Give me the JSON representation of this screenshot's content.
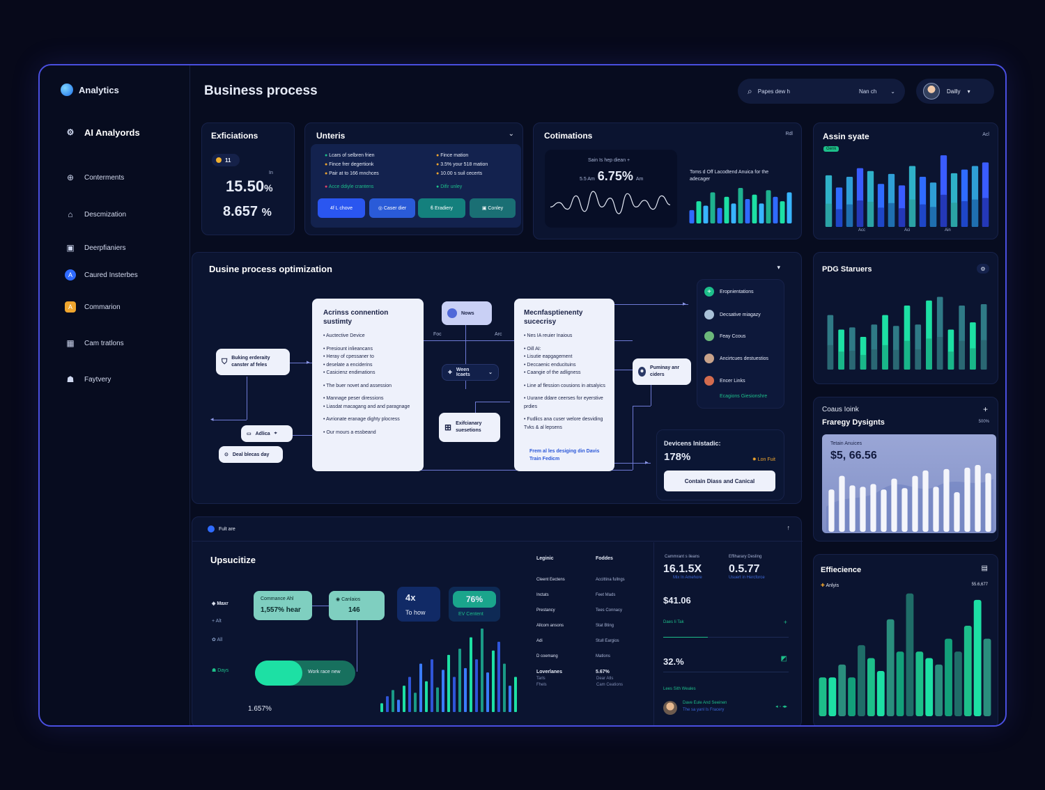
{
  "brand": {
    "name": "Analytics"
  },
  "nav": [
    {
      "label": "AI Analyords",
      "icon": "ai-icon"
    },
    {
      "label": "Conterments",
      "icon": "globe-icon"
    },
    {
      "label": "Descmization",
      "icon": "home-icon"
    },
    {
      "label": "Deerpfianiers",
      "icon": "document-icon"
    },
    {
      "label": "Caured Insterbes",
      "icon": "badge-icon"
    },
    {
      "label": "Commarion",
      "icon": "badge-icon"
    },
    {
      "label": "Cam tratlons",
      "icon": "grid-icon"
    },
    {
      "label": "Faytvery",
      "icon": "user-icon"
    }
  ],
  "header": {
    "title": "Business process",
    "search_text": "Papes dew h",
    "search_select": "Nan ch",
    "user_label": "Dailly"
  },
  "efficiations": {
    "title": "Exficiations",
    "badge": "11",
    "tiny": "In",
    "value1": "15.50",
    "value1_unit": "%",
    "value2": "8.657",
    "value2_unit": "%"
  },
  "unteris": {
    "title": "Unteris",
    "items_left": [
      "Lcars of selbren frien",
      "Fince frer degertionk",
      "Pair at to 166 mnchces",
      "Acce ddiyle crantens"
    ],
    "items_right": [
      "Fince mation",
      "3.5% your 518 mation",
      "10.00 s suil cecerts",
      "Difir unley"
    ],
    "buttons": [
      "4f L chove",
      "Caser dier",
      "Eradiery",
      "Conley"
    ]
  },
  "cotimations": {
    "title": "Cotimations",
    "corner": "Rdl",
    "sub": "Sain Is hep diean +",
    "val_prefix": "5.5 Am",
    "value": "6.75%",
    "val_suffix": "Am",
    "caption": "Toms d Off Lacodtend Anuica for the adecager"
  },
  "assin": {
    "title": "Assin syate",
    "corner": "Acl",
    "tag": "Genk",
    "ticks": [
      "Acc",
      "Aci",
      "Ain"
    ]
  },
  "optimization": {
    "title": "Dusine process optimization",
    "node1": {
      "title": "Acrinss connention sustimty",
      "items": [
        "Auctective Device",
        "Presiount inlieancans",
        "Heray of cpessaner to",
        "deselate a enciderins",
        "Casicienz endimations",
        "The buer novet and assession",
        "Mannage peser diressions",
        "Liasdat macagang and and paragnage",
        "Avrionate eranage dighty plocress",
        "Our mours a essbeand"
      ]
    },
    "node2": {
      "title": "Mecnfasptienenty sucecrisy",
      "items": [
        "Nes IA reuier Inaious",
        "Oill AI:",
        "Lisutie eapgagement",
        "Deccaenic enducituins",
        "Caangie of the adligness",
        "Line af flession cousions in atsalyics",
        "Uurane ddare ceerses for eyerstive prdies",
        "Fudlics ana cuser welore desviding Tvks & al lepsens"
      ],
      "link": "Frem al les desiging din Davis Train Fedicm"
    },
    "pills": {
      "buking": "Buking erderaity canster af feles",
      "adlica": "Adlica",
      "deal": "Deal blecas day",
      "news": "Nows",
      "ween": "Ween Icaets",
      "exifc": "Exifcianary suesetions",
      "punimay": "Puminay anr ciders"
    },
    "labels": {
      "foc": "Foc",
      "arc": "Arc"
    },
    "legend": [
      "Eropnientations",
      "Decsative miagazy",
      "Feay Ccous",
      "Ancirtcues destuestios",
      "Encer Links"
    ],
    "legend_link": "Ecagions Giesionshre",
    "devices": {
      "title": "Devicens Inistadic:",
      "value": "178%",
      "tag": "Lon Fuit",
      "button": "Contain Diass and Canical"
    }
  },
  "pdg": {
    "title": "PDG Staruers"
  },
  "coaus": {
    "title": "Coaus Ioink",
    "subtitle": "Fraregy Dysignts",
    "corner": "500%",
    "label": "Tetain Anuices",
    "value": "$5, 66.56"
  },
  "bottom": {
    "header_label": "Fult are",
    "title": "Upsucitize",
    "axis": [
      "Maxr",
      "Alt",
      "All",
      "Days"
    ],
    "kpis": {
      "a_label": "Commance Ahl",
      "a_value": "1,557% hear",
      "b_label": "Canlaios",
      "b_value": "146",
      "c_value": "4x",
      "c_label": "To how",
      "d_value": "76%",
      "d_label": "EV Centent"
    },
    "toggle": "Work race new",
    "foot": "1.657%",
    "table": {
      "headers": [
        "Leginic",
        "Foddes"
      ],
      "rows": [
        [
          "Cleent Eectens",
          "Accittina fullngs"
        ],
        [
          "Inctats",
          "Feet Mads"
        ],
        [
          "Prestancy",
          "Tees Connacy"
        ],
        [
          "Allcom ansons",
          "Stat Bting"
        ],
        [
          "Adi",
          "Stull Eargios"
        ],
        [
          "D coemang",
          "Matlons"
        ]
      ],
      "footer": [
        "Loverlanes",
        "5.67%"
      ],
      "sub": [
        "Tarls",
        "Dear Atls",
        "Fhels",
        "Cam Ceations"
      ]
    },
    "stats": {
      "a_label": "Cammrant s ileans",
      "a_value": "16.1.5X",
      "a_sub": "Mix In Amehore",
      "b_label": "Effiharary Desling",
      "b_value": "0.5.77",
      "b_sub": "Usuert in Hercforce",
      "money": "$41.06",
      "bar_label": "Daes Ii Tak",
      "pct": "32.%",
      "link": "Lees Sith Weales",
      "person": "Dave Eule And Seeinen",
      "person_sub": "The sa yanl Is Fracery"
    }
  },
  "effic": {
    "title": "Effiecience",
    "legend": "Anlyis",
    "corner": "55.6,677"
  },
  "chart_data": [
    {
      "type": "bar",
      "id": "assin",
      "values": [
        72,
        55,
        70,
        82,
        78,
        60,
        74,
        58,
        85,
        70,
        62,
        100,
        75,
        80,
        85,
        90
      ]
    },
    {
      "type": "bar",
      "id": "pdg",
      "values": [
        75,
        55,
        58,
        45,
        62,
        75,
        60,
        88,
        62,
        95,
        100,
        55,
        88,
        65,
        90
      ]
    },
    {
      "type": "bar",
      "id": "coaus",
      "values": [
        62,
        82,
        68,
        66,
        70,
        62,
        78,
        64,
        82,
        90,
        66,
        92,
        58,
        94,
        98,
        86
      ]
    },
    {
      "type": "bar",
      "id": "effic",
      "values": [
        30,
        30,
        40,
        30,
        55,
        45,
        35,
        75,
        50,
        95,
        50,
        45,
        40,
        60,
        50,
        70,
        90,
        60
      ]
    },
    {
      "type": "bar",
      "id": "mini",
      "values": [
        30,
        50,
        40,
        70,
        35,
        60,
        45,
        80,
        55,
        65,
        45,
        75,
        60,
        50,
        70
      ]
    },
    {
      "type": "line",
      "id": "cotim",
      "values": [
        30,
        34,
        28,
        40,
        26,
        44,
        30,
        38,
        24,
        42,
        30,
        36,
        28,
        40,
        32
      ]
    },
    {
      "type": "bar",
      "id": "upsuc",
      "values": [
        10,
        18,
        25,
        14,
        30,
        40,
        22,
        55,
        35,
        60,
        28,
        48,
        65,
        40,
        72,
        50,
        85,
        60,
        95,
        45,
        70,
        80,
        55,
        30,
        40
      ]
    }
  ]
}
